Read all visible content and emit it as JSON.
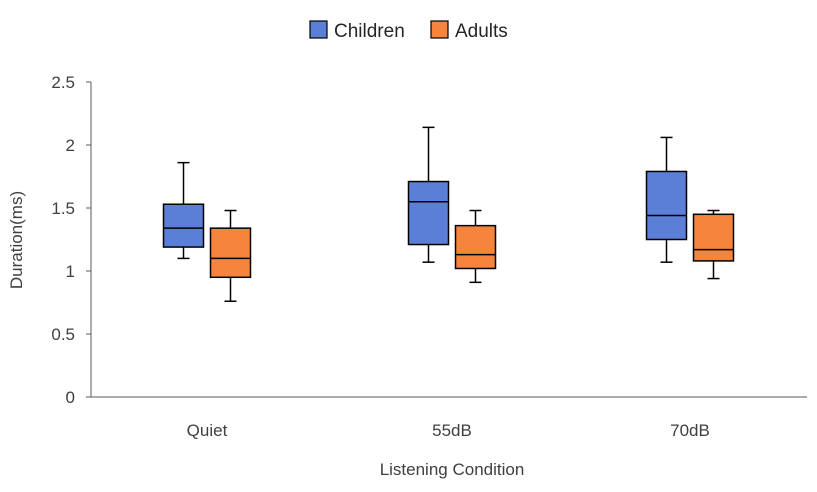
{
  "chart_data": {
    "type": "boxplot",
    "title": "",
    "xlabel": "Listening  Condition",
    "ylabel": "Duration(ms)",
    "ylim": [
      0,
      2.5
    ],
    "yticks": [
      0,
      0.5,
      1,
      1.5,
      2,
      2.5
    ],
    "ytick_labels": [
      "0",
      "0.5",
      "1",
      "1.5",
      "2",
      "2.5"
    ],
    "grid": false,
    "legend_position": "top-center",
    "categories": [
      "Quiet",
      "55dB",
      "70dB"
    ],
    "series": [
      {
        "name": "Children",
        "color": "#5b7fd6",
        "boxes": [
          {
            "min": 1.1,
            "q1": 1.19,
            "median": 1.34,
            "q3": 1.53,
            "max": 1.86
          },
          {
            "min": 1.07,
            "q1": 1.21,
            "median": 1.55,
            "q3": 1.71,
            "max": 2.14
          },
          {
            "min": 1.07,
            "q1": 1.25,
            "median": 1.44,
            "q3": 1.79,
            "max": 2.06
          }
        ]
      },
      {
        "name": "Adults",
        "color": "#f5843d",
        "boxes": [
          {
            "min": 0.76,
            "q1": 0.95,
            "median": 1.1,
            "q3": 1.34,
            "max": 1.48
          },
          {
            "min": 0.91,
            "q1": 1.02,
            "median": 1.13,
            "q3": 1.36,
            "max": 1.48
          },
          {
            "min": 0.94,
            "q1": 1.08,
            "median": 1.17,
            "q3": 1.45,
            "max": 1.48
          }
        ]
      }
    ]
  }
}
